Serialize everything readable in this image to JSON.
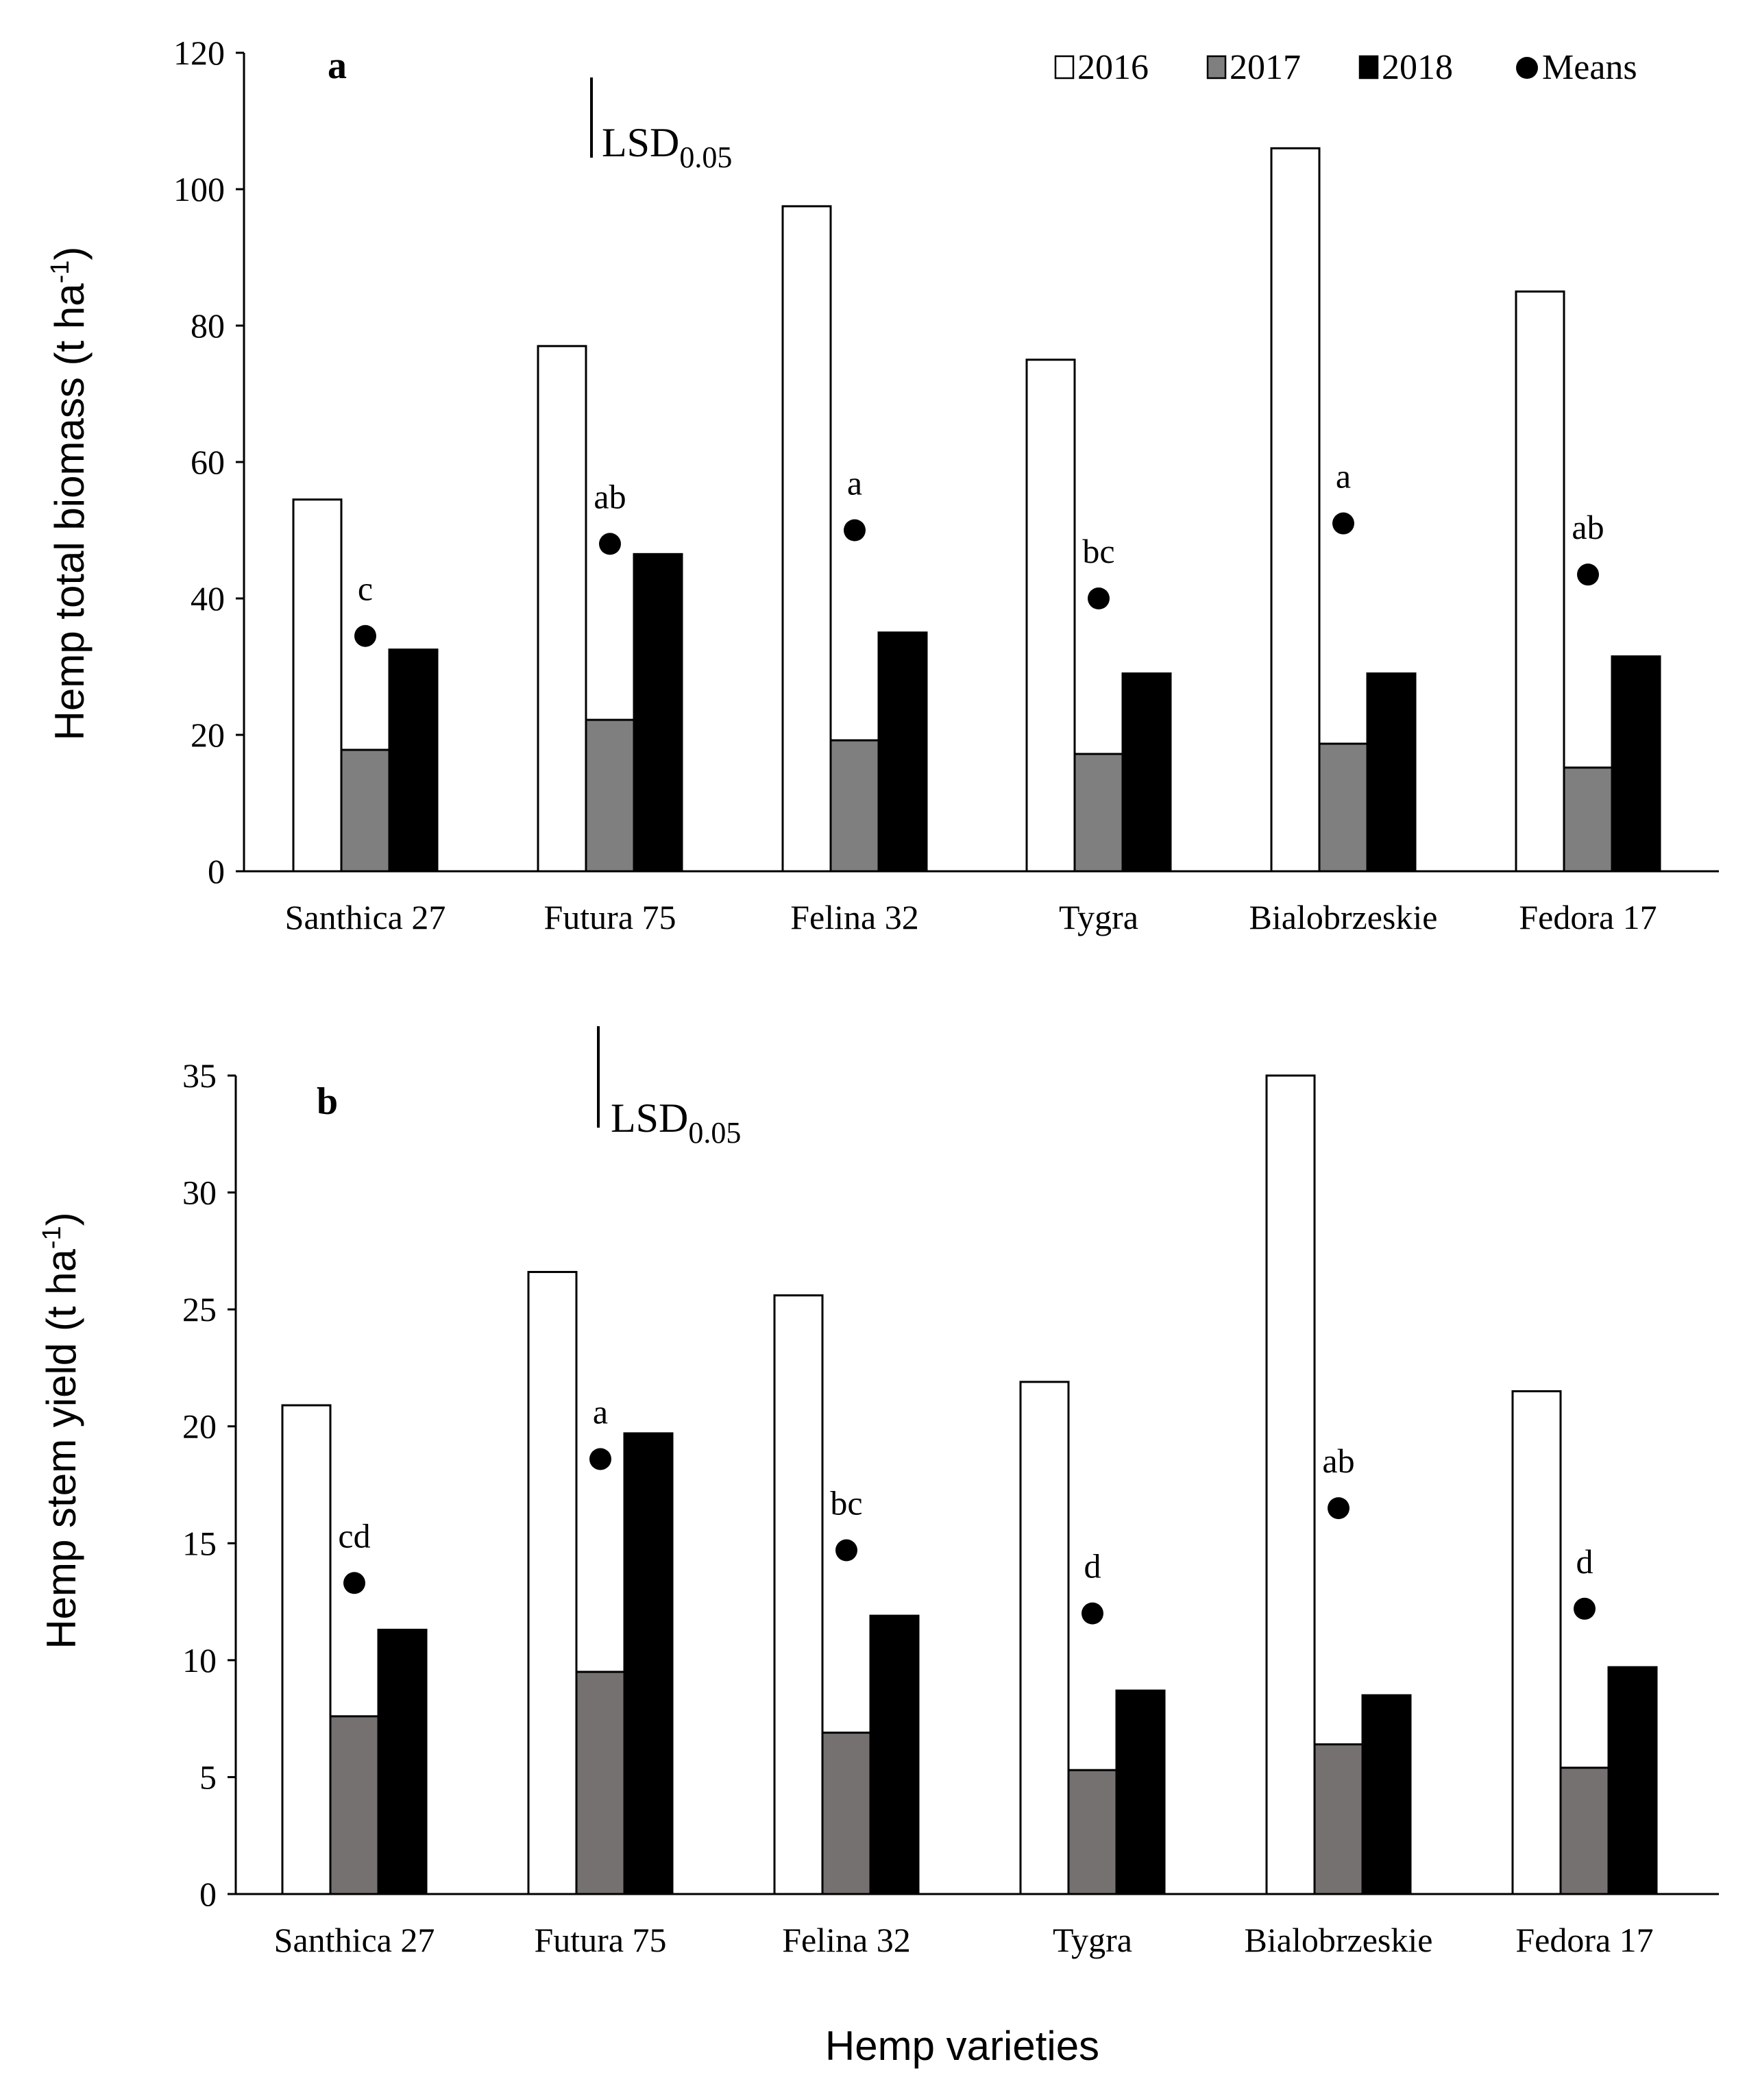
{
  "colors": {
    "y2016": "#ffffff",
    "y2017": "#7f7f7f",
    "y2017_b": "#767171",
    "y2018": "#000000",
    "means": "#000000",
    "axis": "#000000"
  },
  "legend": {
    "items": [
      {
        "label": "2016",
        "marker": "open-square"
      },
      {
        "label": "2017",
        "marker": "gray-square"
      },
      {
        "label": "2018",
        "marker": "black-square"
      },
      {
        "label": "Means",
        "marker": "black-circle"
      }
    ]
  },
  "shared_xlabel": "Hemp varieties",
  "chart_data": [
    {
      "type": "bar",
      "panel": "a",
      "ylabel": "Hemp total biomass (t ha-1)",
      "ylabel_main": "Hemp total biomass (t ha",
      "ylabel_sup": "-1",
      "ylabel_close": ")",
      "ylim": [
        0,
        120
      ],
      "yticks": [
        0,
        20,
        40,
        60,
        80,
        100,
        120
      ],
      "lsd_label": "LSD",
      "lsd_sub": "0.05",
      "lsd_value": 10.5,
      "categories": [
        "Santhica 27",
        "Futura 75",
        "Felina 32",
        "Tygra",
        "Bialobrzeskie",
        "Fedora 17"
      ],
      "series": [
        {
          "name": "2016",
          "values": [
            54.5,
            77,
            97.5,
            75,
            106,
            85
          ]
        },
        {
          "name": "2017",
          "values": [
            17.8,
            22.2,
            19.2,
            17.2,
            18.7,
            15.2
          ]
        },
        {
          "name": "2018",
          "values": [
            32.5,
            46.5,
            35,
            29,
            29,
            31.5
          ]
        },
        {
          "name": "Means",
          "values": [
            34.5,
            48,
            50,
            40,
            51,
            43.5
          ]
        }
      ],
      "mean_letters": [
        "c",
        "ab",
        "a",
        "bc",
        "a",
        "ab"
      ]
    },
    {
      "type": "bar",
      "panel": "b",
      "ylabel": "Hemp stem yield (t ha-1)",
      "ylabel_main": "Hemp stem yield (t ha",
      "ylabel_sup": "-1",
      "ylabel_close": ")",
      "ylim": [
        0,
        35
      ],
      "yticks": [
        0,
        5,
        10,
        15,
        20,
        25,
        30,
        35
      ],
      "lsd_label": "LSD",
      "lsd_sub": "0.05",
      "lsd_value": 4.3,
      "categories": [
        "Santhica 27",
        "Futura 75",
        "Felina 32",
        "Tygra",
        "Bialobrzeskie",
        "Fedora 17"
      ],
      "series": [
        {
          "name": "2016",
          "values": [
            20.9,
            26.6,
            25.6,
            21.9,
            35,
            21.5
          ]
        },
        {
          "name": "2017",
          "values": [
            7.6,
            9.5,
            6.9,
            5.3,
            6.4,
            5.4
          ]
        },
        {
          "name": "2018",
          "values": [
            11.3,
            19.7,
            11.9,
            8.7,
            8.5,
            9.7
          ]
        },
        {
          "name": "Means",
          "values": [
            13.3,
            18.6,
            14.7,
            12,
            16.5,
            12.2
          ]
        }
      ],
      "mean_letters": [
        "cd",
        "a",
        "bc",
        "d",
        "ab",
        "d"
      ]
    }
  ]
}
